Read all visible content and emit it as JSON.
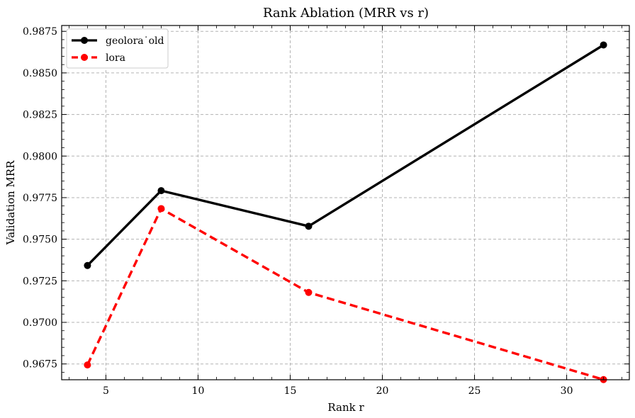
{
  "chart_data": {
    "type": "line",
    "title": "Rank Ablation (MRR vs r)",
    "xlabel": "Rank r",
    "ylabel": "Validation MRR",
    "x": [
      4,
      8,
      16,
      32
    ],
    "series": [
      {
        "name": "geolora˙old",
        "values": [
          0.97342,
          0.97792,
          0.97578,
          0.98668
        ],
        "color": "#000000",
        "style": "solid"
      },
      {
        "name": "lora",
        "values": [
          0.96744,
          0.97684,
          0.9718,
          0.96656
        ],
        "color": "#ff0000",
        "style": "dashed"
      }
    ],
    "xlim": [
      2.6,
      33.4
    ],
    "ylim": [
      0.96655,
      0.98785
    ],
    "xticks": [
      5,
      10,
      15,
      20,
      25,
      30
    ],
    "xtick_labels": [
      "5",
      "10",
      "15",
      "20",
      "25",
      "30"
    ],
    "yticks": [
      0.9675,
      0.97,
      0.9725,
      0.975,
      0.9775,
      0.98,
      0.9825,
      0.985,
      0.9875
    ],
    "ytick_labels": [
      "0.9675",
      "0.9700",
      "0.9725",
      "0.9750",
      "0.9775",
      "0.9800",
      "0.9825",
      "0.9850",
      "0.9875"
    ],
    "grid": true,
    "legend_position": "top-left"
  }
}
